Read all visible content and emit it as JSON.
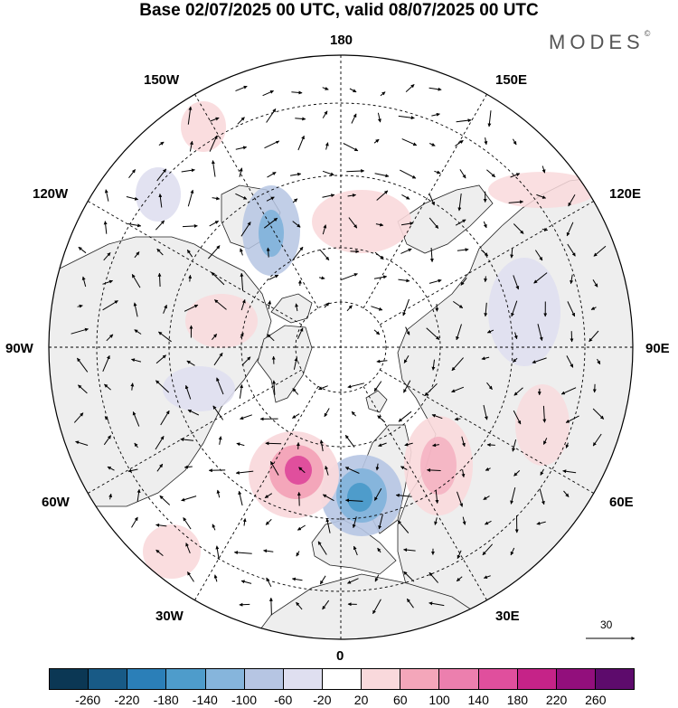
{
  "title": "Base 02/07/2025 00 UTC, valid 08/07/2025 00 UTC",
  "brand": "MODES",
  "brand_mark": "©",
  "longitude_labels": {
    "lon_180": "180",
    "lon_150w": "150W",
    "lon_150e": "150E",
    "lon_120w": "120W",
    "lon_120e": "120E",
    "lon_90w": "90W",
    "lon_90e": "90E",
    "lon_60w": "60W",
    "lon_60e": "60E",
    "lon_30w": "30W",
    "lon_30e": "30E",
    "lon_0": "0"
  },
  "reference_vector": {
    "label": "30"
  },
  "colorbar": {
    "colors": [
      "#0b3754",
      "#185a86",
      "#2b7fb8",
      "#4e9ccb",
      "#86b5dc",
      "#b6c5e3",
      "#dfdff0",
      "#ffffff",
      "#f9d9dc",
      "#f4a6ba",
      "#ec7fae",
      "#e04f9d",
      "#c52388",
      "#920f7c",
      "#5d0b6c"
    ],
    "labels": [
      "-260",
      "-220",
      "-180",
      "-140",
      "-100",
      "-60",
      "-20",
      "20",
      "60",
      "100",
      "140",
      "180",
      "220",
      "260"
    ]
  },
  "anomaly_features": [
    {
      "kind": "negative",
      "lon": -5,
      "lat": 52,
      "level": -180
    },
    {
      "kind": "positive",
      "lon": -32,
      "lat": 50,
      "level": 180
    },
    {
      "kind": "negative",
      "lon": -168,
      "lat": 55,
      "level": -140
    },
    {
      "kind": "positive",
      "lon": 160,
      "lat": 58,
      "level": 60
    },
    {
      "kind": "positive",
      "lon": -130,
      "lat": 60,
      "level": 60
    },
    {
      "kind": "positive",
      "lon": 40,
      "lat": 45,
      "level": 60
    }
  ]
}
